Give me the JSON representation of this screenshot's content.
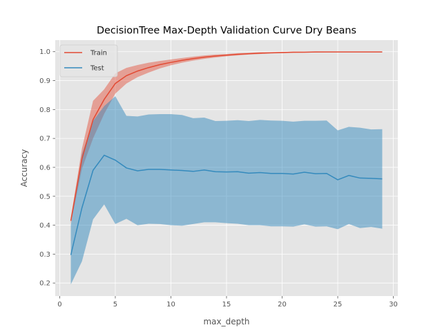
{
  "chart_data": {
    "type": "line",
    "title": "DecisionTree Max-Depth Validation Curve Dry Beans",
    "xlabel": "max_depth",
    "ylabel": "Accuracy",
    "xlim": [
      -0.4,
      30.4
    ],
    "ylim": [
      0.155,
      1.04
    ],
    "xticks": [
      0,
      5,
      10,
      15,
      20,
      25,
      30
    ],
    "yticks": [
      0.2,
      0.3,
      0.4,
      0.5,
      0.6,
      0.7,
      0.8,
      0.9,
      1.0
    ],
    "grid": true,
    "legend_position": "top-left",
    "background": "#e5e5e5",
    "x": [
      1,
      2,
      3,
      4,
      5,
      6,
      7,
      8,
      9,
      10,
      11,
      12,
      13,
      14,
      15,
      16,
      17,
      18,
      19,
      20,
      21,
      22,
      23,
      24,
      25,
      26,
      27,
      28,
      29
    ],
    "series": [
      {
        "name": "Train",
        "color": "#e24a33",
        "values": [
          0.415,
          0.63,
          0.765,
          0.835,
          0.89,
          0.917,
          0.933,
          0.945,
          0.955,
          0.963,
          0.97,
          0.976,
          0.981,
          0.985,
          0.988,
          0.991,
          0.993,
          0.995,
          0.996,
          0.997,
          0.998,
          0.998,
          0.999,
          0.999,
          0.999,
          0.999,
          0.999,
          0.999,
          0.999
        ],
        "lower": [
          0.405,
          0.595,
          0.7,
          0.785,
          0.855,
          0.89,
          0.912,
          0.928,
          0.942,
          0.953,
          0.962,
          0.969,
          0.975,
          0.98,
          0.984,
          0.987,
          0.99,
          0.992,
          0.994,
          0.995,
          0.996,
          0.997,
          0.997,
          0.998,
          0.998,
          0.998,
          0.998,
          0.998,
          0.998
        ],
        "upper": [
          0.425,
          0.665,
          0.83,
          0.87,
          0.925,
          0.944,
          0.954,
          0.962,
          0.968,
          0.973,
          0.978,
          0.983,
          0.987,
          0.99,
          0.992,
          0.995,
          0.996,
          0.998,
          0.998,
          0.999,
          1.0,
          1.0,
          1.0,
          1.0,
          1.0,
          1.0,
          1.0,
          1.0,
          1.0
        ]
      },
      {
        "name": "Test",
        "color": "#348abd",
        "values": [
          0.297,
          0.46,
          0.59,
          0.642,
          0.625,
          0.598,
          0.588,
          0.593,
          0.593,
          0.591,
          0.589,
          0.586,
          0.591,
          0.585,
          0.584,
          0.585,
          0.58,
          0.582,
          0.579,
          0.579,
          0.577,
          0.583,
          0.578,
          0.579,
          0.557,
          0.572,
          0.563,
          0.562,
          0.56
        ],
        "lower": [
          0.195,
          0.275,
          0.42,
          0.472,
          0.404,
          0.422,
          0.4,
          0.405,
          0.404,
          0.4,
          0.398,
          0.404,
          0.41,
          0.41,
          0.407,
          0.405,
          0.4,
          0.4,
          0.396,
          0.396,
          0.395,
          0.403,
          0.395,
          0.396,
          0.386,
          0.404,
          0.39,
          0.394,
          0.388
        ],
        "upper": [
          0.4,
          0.645,
          0.76,
          0.812,
          0.846,
          0.778,
          0.776,
          0.783,
          0.784,
          0.784,
          0.781,
          0.77,
          0.772,
          0.76,
          0.761,
          0.763,
          0.76,
          0.764,
          0.762,
          0.761,
          0.758,
          0.761,
          0.761,
          0.762,
          0.728,
          0.74,
          0.737,
          0.731,
          0.732
        ]
      }
    ]
  }
}
